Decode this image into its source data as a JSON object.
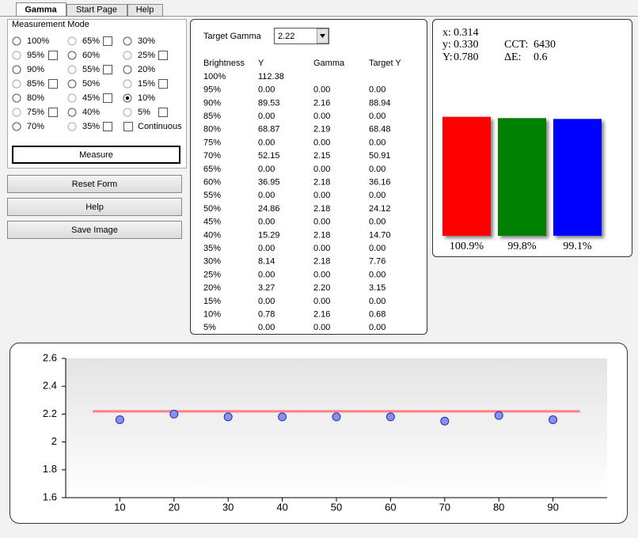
{
  "tabs": [
    "Gamma",
    "Start Page",
    "Help"
  ],
  "measurement_mode": {
    "title": "Measurement Mode",
    "columns": [
      [
        {
          "label": "100%",
          "checkbox": false
        },
        {
          "label": "95%",
          "checkbox": true
        },
        {
          "label": "90%",
          "checkbox": false
        },
        {
          "label": "85%",
          "checkbox": true
        },
        {
          "label": "80%",
          "checkbox": false
        },
        {
          "label": "75%",
          "checkbox": true
        },
        {
          "label": "70%",
          "checkbox": false
        }
      ],
      [
        {
          "label": "65%",
          "checkbox": true
        },
        {
          "label": "60%",
          "checkbox": false
        },
        {
          "label": "55%",
          "checkbox": true
        },
        {
          "label": "50%",
          "checkbox": false
        },
        {
          "label": "45%",
          "checkbox": true
        },
        {
          "label": "40%",
          "checkbox": false
        },
        {
          "label": "35%",
          "checkbox": true
        }
      ],
      [
        {
          "label": "30%",
          "checkbox": false
        },
        {
          "label": "25%",
          "checkbox": true
        },
        {
          "label": "20%",
          "checkbox": false
        },
        {
          "label": "15%",
          "checkbox": true
        },
        {
          "label": "10%",
          "checkbox": false,
          "selected": true
        },
        {
          "label": "5%",
          "checkbox": true
        },
        {
          "label": "Continuous",
          "checkbox": true,
          "radio": false
        }
      ]
    ],
    "button": "Measure"
  },
  "buttons": [
    "Reset Form",
    "Help",
    "Save Image"
  ],
  "target_gamma": {
    "label": "Target Gamma",
    "value": "2.22"
  },
  "table": {
    "headers": [
      "Brightness",
      "Y",
      "Gamma",
      "Target Y"
    ],
    "rows": [
      [
        "100%",
        "112.38"
      ],
      [
        "95%",
        "0.00",
        "0.00",
        "0.00"
      ],
      [
        "90%",
        "89.53",
        "2.16",
        "88.94"
      ],
      [
        "85%",
        "0.00",
        "0.00",
        "0.00"
      ],
      [
        "80%",
        "68.87",
        "2.19",
        "68.48"
      ],
      [
        "75%",
        "0.00",
        "0.00",
        "0.00"
      ],
      [
        "70%",
        "52.15",
        "2.15",
        "50.91"
      ],
      [
        "65%",
        "0.00",
        "0.00",
        "0.00"
      ],
      [
        "60%",
        "36.95",
        "2.18",
        "36.16"
      ],
      [
        "55%",
        "0.00",
        "0.00",
        "0.00"
      ],
      [
        "50%",
        "24.86",
        "2.18",
        "24.12"
      ],
      [
        "45%",
        "0.00",
        "0.00",
        "0.00"
      ],
      [
        "40%",
        "15.29",
        "2.18",
        "14.70"
      ],
      [
        "35%",
        "0.00",
        "0.00",
        "0.00"
      ],
      [
        "30%",
        "8.14",
        "2.18",
        "7.76"
      ],
      [
        "25%",
        "0.00",
        "0.00",
        "0.00"
      ],
      [
        "20%",
        "3.27",
        "2.20",
        "3.15"
      ],
      [
        "15%",
        "0.00",
        "0.00",
        "0.00"
      ],
      [
        "10%",
        "0.78",
        "2.16",
        "0.68"
      ],
      [
        "5%",
        "0.00",
        "0.00",
        "0.00"
      ]
    ]
  },
  "stats": [
    {
      "label": "x:",
      "value": "0.314"
    },
    {
      "label": "y:",
      "value": "0.330"
    },
    {
      "label": "Y:",
      "value": "0.780"
    },
    {
      "label": "CCT:",
      "value": "6430"
    },
    {
      "label": "ΔE:",
      "value": "0.6"
    }
  ],
  "rgb_balance": {
    "values": [
      100.9,
      99.8,
      99.1
    ],
    "value_labels": [
      "100.9%",
      "99.8%",
      "99.1%"
    ],
    "colors": [
      "#ff0000",
      "#008000",
      "#0000ff"
    ]
  },
  "chart_data": {
    "type": "scatter",
    "xlim": [
      0,
      100
    ],
    "xticks": [
      10,
      20,
      30,
      40,
      50,
      60,
      70,
      80,
      90
    ],
    "ylim": [
      1.6,
      2.6
    ],
    "yticks": [
      1.6,
      1.8,
      2,
      2.2,
      2.4,
      2.6
    ],
    "series": [
      {
        "type": "line",
        "color": "#ff8080",
        "x": [
          5,
          95
        ],
        "values": [
          2.22,
          2.22
        ]
      },
      {
        "type": "scatter",
        "color": "#8a8ef0",
        "x": [
          10,
          20,
          30,
          40,
          50,
          60,
          70,
          80,
          90
        ],
        "values": [
          2.16,
          2.2,
          2.18,
          2.18,
          2.18,
          2.18,
          2.15,
          2.19,
          2.16
        ]
      }
    ]
  }
}
